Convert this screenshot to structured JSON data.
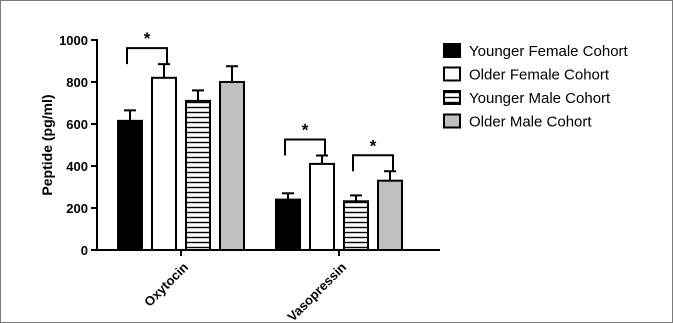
{
  "chart_data": {
    "type": "bar",
    "title": "",
    "xlabel": "",
    "ylabel": "Peptide  (pg/ml)",
    "ylim": [
      0,
      1000
    ],
    "yticks": [
      0,
      200,
      400,
      600,
      800,
      1000
    ],
    "categories": [
      "Oxytocin",
      "Vasopressin"
    ],
    "series": [
      {
        "name": "Younger Female Cohort",
        "values": [
          615,
          240
        ],
        "errors": [
          50,
          30
        ],
        "fill": "#000000",
        "pattern": "solid"
      },
      {
        "name": "Older Female Cohort",
        "values": [
          820,
          410
        ],
        "errors": [
          65,
          40
        ],
        "fill": "#ffffff",
        "pattern": "solid"
      },
      {
        "name": "Younger Male Cohort",
        "values": [
          710,
          232
        ],
        "errors": [
          50,
          28
        ],
        "fill": "#ffffff",
        "pattern": "horizontal-stripes"
      },
      {
        "name": "Older Male Cohort",
        "values": [
          800,
          330
        ],
        "errors": [
          75,
          45
        ],
        "fill": "#c0c0c0",
        "pattern": "solid"
      }
    ],
    "significance": [
      {
        "category": "Oxytocin",
        "between": [
          "Younger Female Cohort",
          "Older Female Cohort"
        ],
        "label": "*"
      },
      {
        "category": "Vasopressin",
        "between": [
          "Younger Female Cohort",
          "Older Female Cohort"
        ],
        "label": "*"
      },
      {
        "category": "Vasopressin",
        "between": [
          "Younger Male Cohort",
          "Older Male Cohort"
        ],
        "label": "*"
      }
    ],
    "legend_position": "right",
    "grid": false
  }
}
